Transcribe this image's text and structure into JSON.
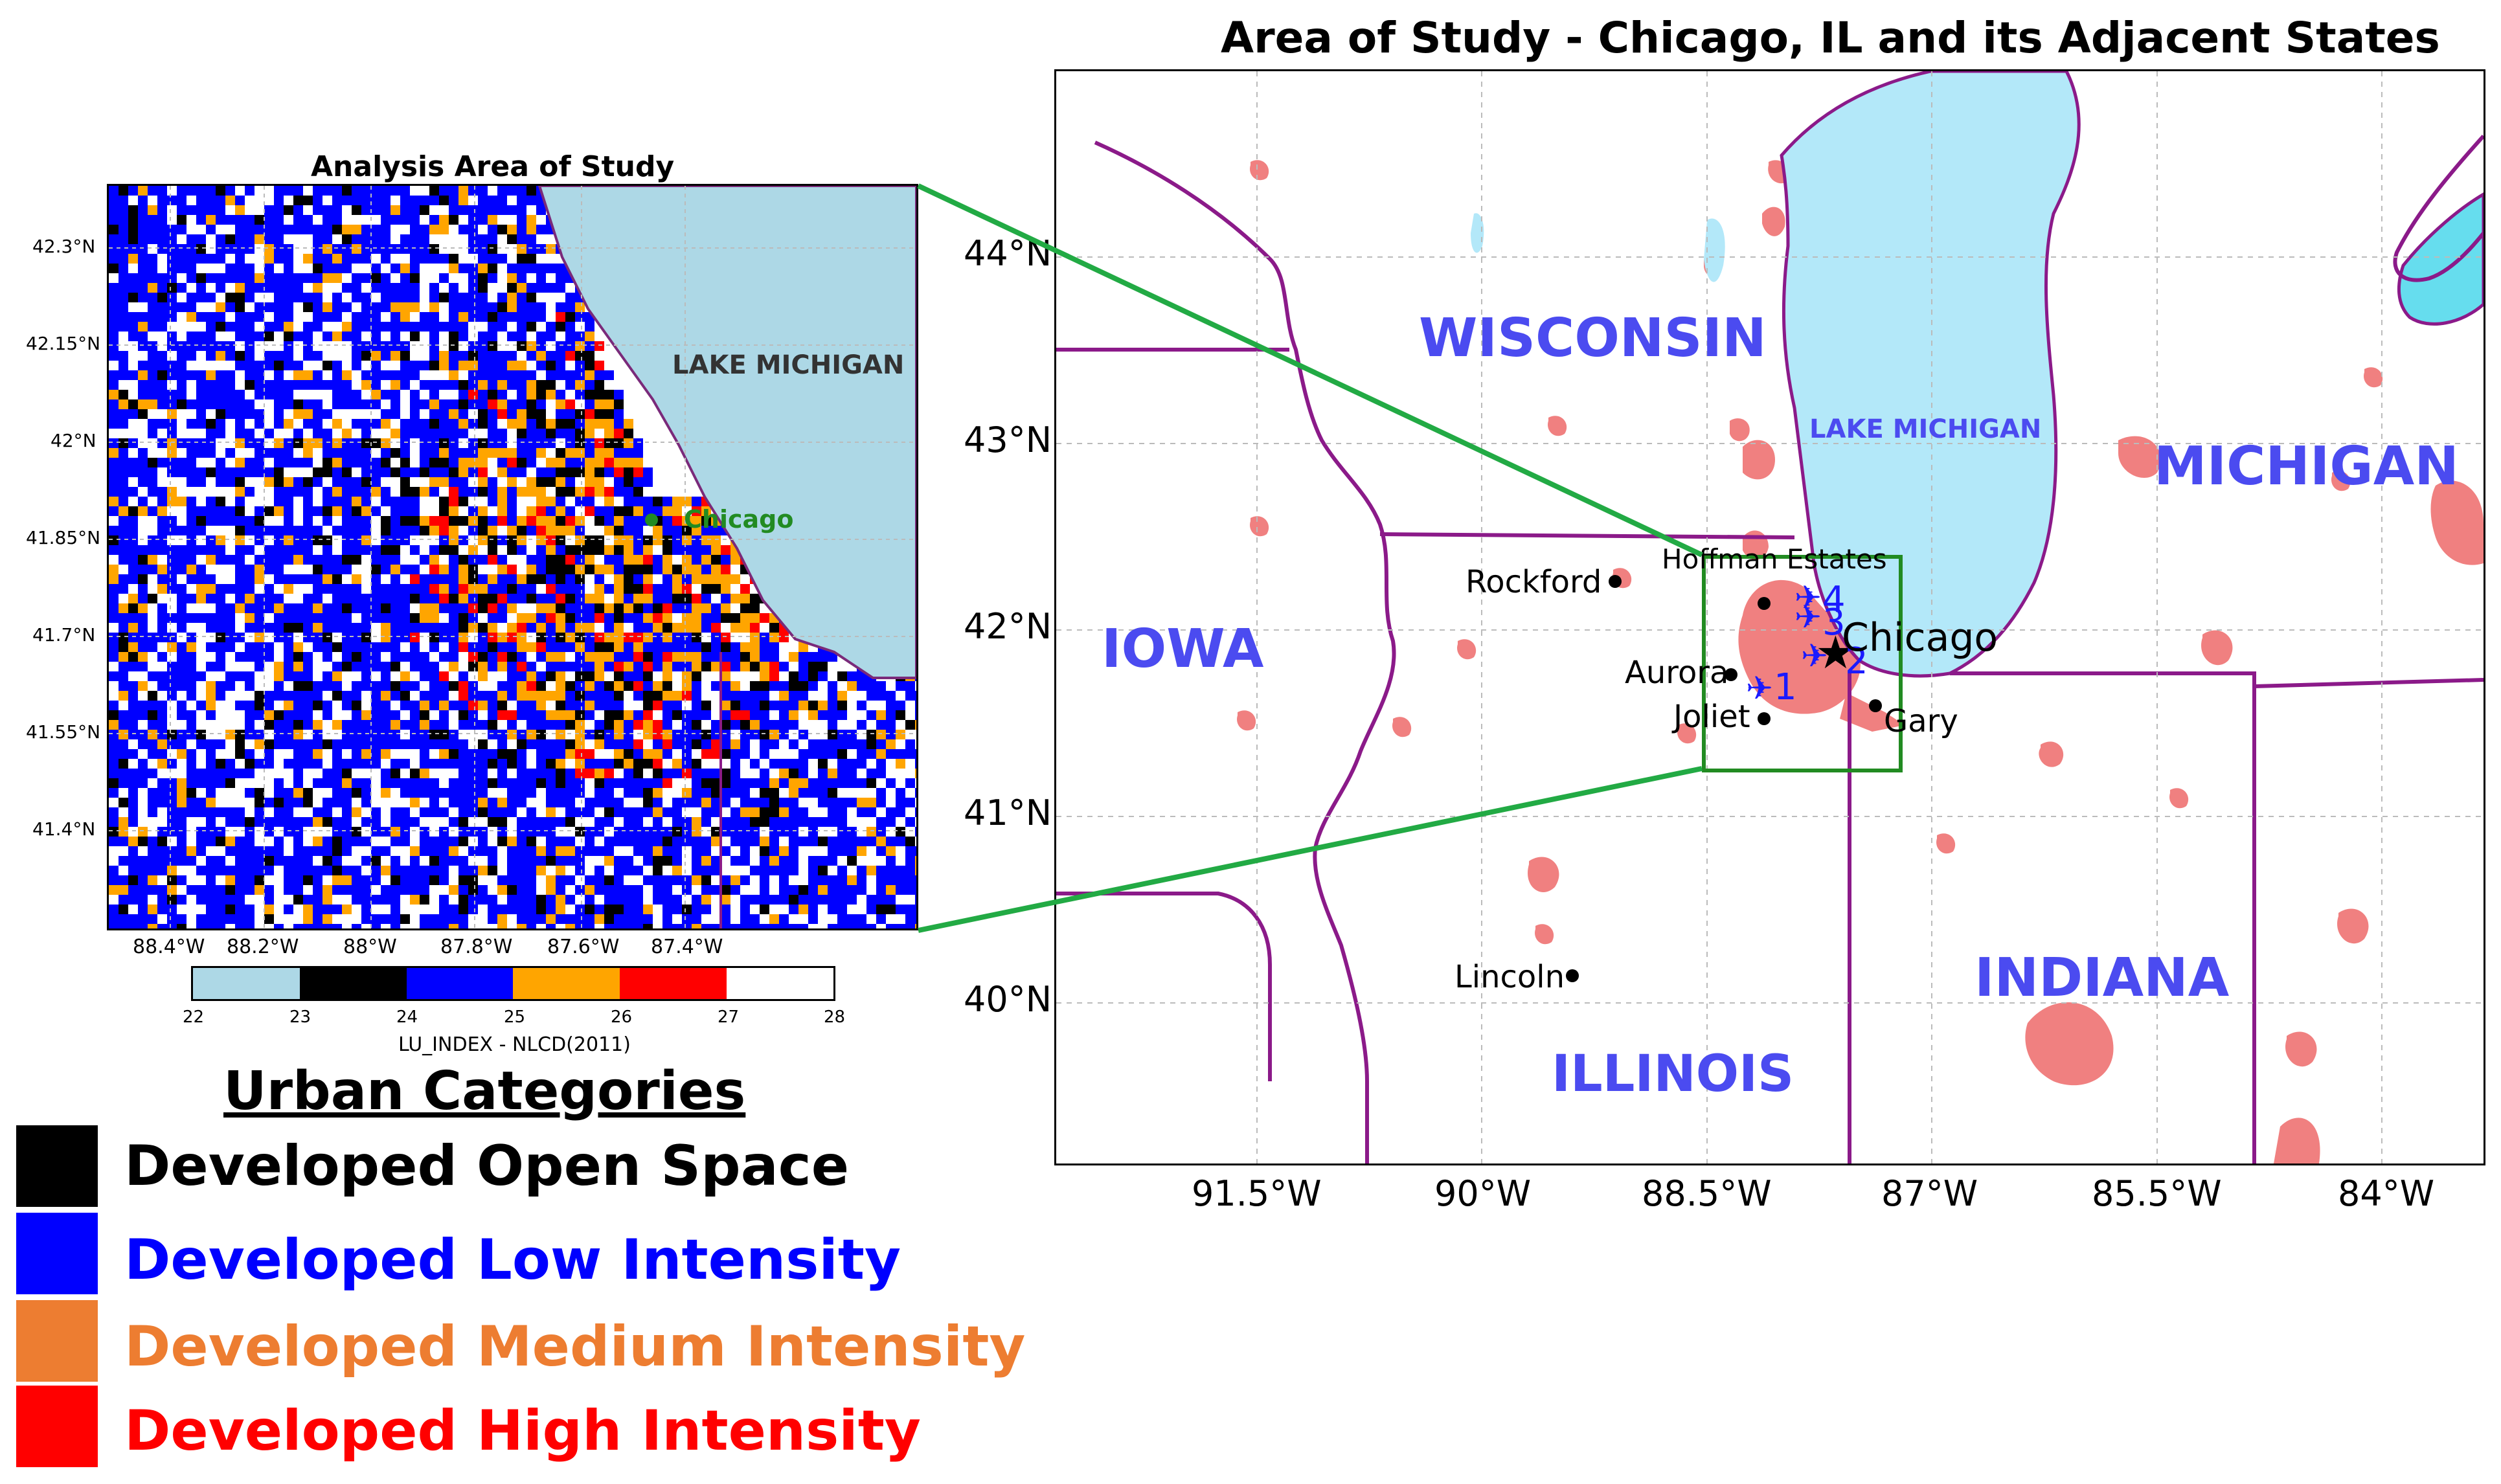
{
  "left_map": {
    "title": "Analysis Area of Study",
    "lake_label": "LAKE MICHIGAN",
    "city_label": "Chicago",
    "lat_ticks": [
      "42.3°N",
      "42.15°N",
      "42°N",
      "41.85°N",
      "41.7°N",
      "41.55°N",
      "41.4°N"
    ],
    "lon_ticks": [
      "88.4°W",
      "88.2°W",
      "88°W",
      "87.8°W",
      "87.6°W",
      "87.4°W"
    ],
    "colorbar": {
      "label": "LU_INDEX - NLCD(2011)",
      "ticks": [
        "22",
        "23",
        "24",
        "25",
        "26",
        "27",
        "28"
      ],
      "colors": [
        "#add8e6",
        "#000000",
        "#0000ff",
        "#ffa500",
        "#ff0000",
        "#ffffff"
      ]
    }
  },
  "right_map": {
    "title": "Area of Study - Chicago, IL and its Adjacent States",
    "lat_ticks": [
      "44°N",
      "43°N",
      "42°N",
      "41°N",
      "40°N"
    ],
    "lon_ticks": [
      "91.5°W",
      "90°W",
      "88.5°W",
      "87°W",
      "85.5°W",
      "84°W"
    ],
    "states": [
      "WISCONSIN",
      "IOWA",
      "ILLINOIS",
      "INDIANA",
      "MICHIGAN"
    ],
    "lake_label": "LAKE MICHIGAN",
    "cities": [
      {
        "name": "Rockford"
      },
      {
        "name": "Hoffman Estates"
      },
      {
        "name": "Chicago"
      },
      {
        "name": "Aurora"
      },
      {
        "name": "Joliet"
      },
      {
        "name": "Gary"
      },
      {
        "name": "Lincoln"
      }
    ],
    "airports": [
      "1",
      "2",
      "3",
      "4"
    ]
  },
  "legend": {
    "title": "Urban Categories",
    "items": [
      {
        "label": "Developed Open Space",
        "color": "#000000"
      },
      {
        "label": "Developed Low Intensity",
        "color": "#0000ff"
      },
      {
        "label": "Developed Medium Intensity",
        "color": "#ed7d31"
      },
      {
        "label": "Developed High Intensity",
        "color": "#ff0000"
      }
    ]
  },
  "colors": {
    "lake_left": "#add8e6",
    "lake_right": "#b3e8f9",
    "urban": "#f08080",
    "state_border": "#8b1a89",
    "zoom_lines": "#22aa44",
    "zoom_box": "#228b22",
    "state_label": "#4b4bf0"
  }
}
